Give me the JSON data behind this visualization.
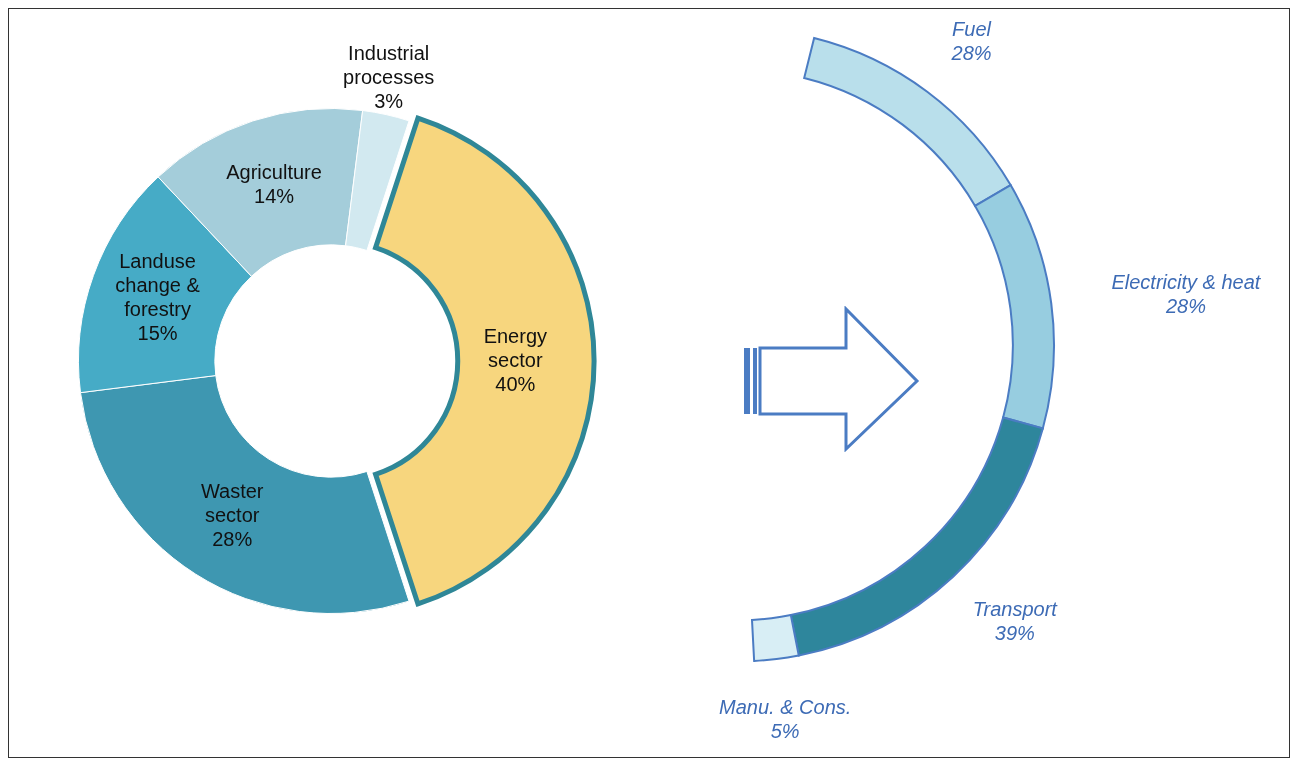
{
  "chart_data": [
    {
      "type": "donut",
      "categories": [
        "Energy sector",
        "Waster sector",
        "Landuse change & forestry",
        "Agriculture",
        "Industrial processes"
      ],
      "values": [
        40,
        28,
        15,
        14,
        3
      ],
      "value_labels": [
        "40%",
        "28%",
        "15%",
        "14%",
        "3%"
      ],
      "colors": [
        "#f7d67e",
        "#3e97b1",
        "#46abc6",
        "#a4cdda",
        "#d2e9f0"
      ],
      "legend": false
    },
    {
      "type": "donut",
      "categories": [
        "Fuel",
        "Electricity & heat",
        "Transport",
        "Manu. & Cons."
      ],
      "values": [
        28,
        28,
        39,
        5
      ],
      "value_labels": [
        "28%",
        "28%",
        "39%",
        "5%"
      ],
      "colors": [
        "#b9dfeb",
        "#97cde0",
        "#2e869c",
        "#d8eef5"
      ],
      "legend": false
    }
  ]
}
